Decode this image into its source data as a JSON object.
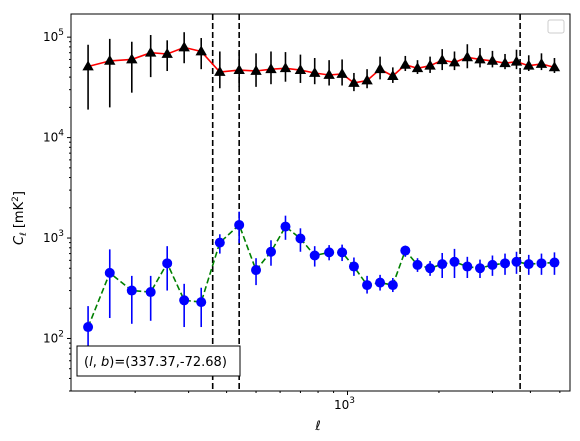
{
  "chart_data": {
    "type": "line",
    "title": "",
    "xlabel": "ℓ",
    "ylabel": "C_ℓ [mK²]",
    "x_scale": "log",
    "y_scale": "log",
    "xlim": [
      123,
      5400
    ],
    "ylim": [
      30,
      170000
    ],
    "x_tick_labels": [
      {
        "value": 1000,
        "base": "10",
        "exp": "3"
      }
    ],
    "y_tick_labels": [
      {
        "value": 100,
        "base": "10",
        "exp": "2"
      },
      {
        "value": 1000,
        "base": "10",
        "exp": "3"
      },
      {
        "value": 10000,
        "base": "10",
        "exp": "4"
      },
      {
        "value": 100000,
        "base": "10",
        "exp": "5"
      }
    ],
    "legend": {
      "placement": "top-right",
      "entries": []
    },
    "annotation": "(l, b)=(337.37,-72.68)",
    "annotation_parts": {
      "l": "l",
      "sep": ", ",
      "b": "b",
      "eq": "=",
      "coords": "(337.37,-72.68)"
    },
    "vlines": [
      {
        "x": 360,
        "color": "#000000",
        "style": "dashed"
      },
      {
        "x": 440,
        "color": "#000000",
        "style": "dashed"
      },
      {
        "x": 3700,
        "color": "#000000",
        "style": "dashed"
      }
    ],
    "series": [
      {
        "color": "#ff0000",
        "errorbar_color": "#000000",
        "marker_color": "#000000",
        "marker": "triangle",
        "line_style": "solid",
        "x": [
          140,
          165,
          195,
          225,
          255,
          290,
          330,
          380,
          440,
          500,
          560,
          625,
          700,
          780,
          870,
          960,
          1050,
          1160,
          1280,
          1410,
          1550,
          1700,
          1870,
          2050,
          2250,
          2480,
          2730,
          3000,
          3300,
          3600,
          3950,
          4350,
          4800
        ],
        "y": [
          51000,
          58000,
          60000,
          70000,
          68000,
          79000,
          72000,
          45000,
          47000,
          46000,
          48000,
          49000,
          47000,
          44000,
          42000,
          43000,
          35000,
          37000,
          48000,
          41000,
          53000,
          49000,
          52000,
          59000,
          56000,
          63000,
          60000,
          58000,
          55000,
          57000,
          52000,
          54000,
          50000
        ],
        "yerr_low": [
          32000,
          38000,
          32000,
          30000,
          22000,
          24000,
          24000,
          14000,
          15000,
          14000,
          14000,
          13000,
          12000,
          10000,
          9000,
          10000,
          6000,
          6000,
          10000,
          6000,
          7000,
          6000,
          8000,
          12000,
          9000,
          14000,
          10000,
          8000,
          7000,
          9000,
          6000,
          7000,
          6000
        ],
        "yerr_high": [
          33000,
          38000,
          30000,
          35000,
          25000,
          33000,
          26000,
          27000,
          25000,
          23000,
          24000,
          22000,
          20000,
          18000,
          17000,
          17000,
          9000,
          11000,
          16000,
          9000,
          12000,
          10000,
          12000,
          17000,
          16000,
          22000,
          18000,
          15000,
          13000,
          18000,
          14000,
          15000,
          12000
        ]
      },
      {
        "color": "#008000",
        "errorbar_color": "#0000ff",
        "marker_color": "#0000ff",
        "marker": "circle",
        "line_style": "dashed",
        "x": [
          140,
          165,
          195,
          225,
          255,
          290,
          330,
          380,
          440,
          500,
          560,
          625,
          700,
          780,
          870,
          960,
          1050,
          1160,
          1280,
          1410,
          1550,
          1700,
          1870,
          2050,
          2250,
          2480,
          2730,
          3000,
          3300,
          3600,
          3950,
          4350,
          4800
        ],
        "y": [
          130,
          450,
          300,
          290,
          560,
          240,
          230,
          900,
          1350,
          480,
          730,
          1300,
          990,
          670,
          720,
          720,
          520,
          340,
          360,
          340,
          750,
          540,
          500,
          550,
          580,
          520,
          500,
          540,
          560,
          580,
          550,
          560,
          570
        ],
        "yerr_low": [
          60,
          290,
          160,
          140,
          260,
          110,
          100,
          200,
          460,
          140,
          200,
          340,
          260,
          150,
          120,
          130,
          100,
          60,
          60,
          50,
          100,
          80,
          80,
          150,
          180,
          120,
          100,
          120,
          130,
          140,
          120,
          130,
          140
        ],
        "yerr_high": [
          80,
          320,
          120,
          130,
          270,
          110,
          90,
          190,
          480,
          150,
          220,
          370,
          260,
          160,
          130,
          140,
          120,
          80,
          70,
          60,
          90,
          90,
          90,
          160,
          200,
          130,
          110,
          130,
          140,
          150,
          130,
          140,
          150
        ]
      }
    ]
  }
}
